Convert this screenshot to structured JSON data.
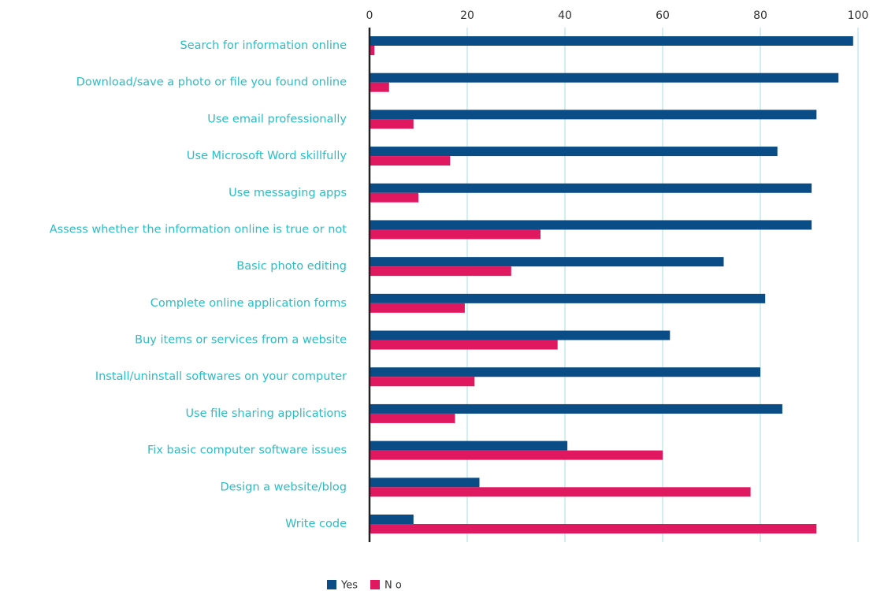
{
  "chart_data": {
    "type": "bar",
    "orientation": "horizontal",
    "categories": [
      "Search for information online",
      "Download/save a photo or file you found online",
      "Use email professionally",
      "Use Microsoft Word skillfully",
      "Use messaging apps",
      "Assess whether the information online is true or not",
      "Basic photo editing",
      "Complete online application forms",
      "Buy items or services from a website",
      "Install/uninstall softwares on your computer",
      "Use file sharing applications",
      "Fix basic computer software issues",
      "Design a website/blog",
      "Write code"
    ],
    "series": [
      {
        "name": "Yes",
        "color": "#0a4c86",
        "values": [
          99,
          96,
          91.5,
          83.5,
          90.5,
          90.5,
          72.5,
          81,
          61.5,
          80,
          84.5,
          40.5,
          22.5,
          9
        ]
      },
      {
        "name": "N o",
        "color": "#e0185f",
        "values": [
          1,
          4,
          9,
          16.5,
          10,
          35,
          29,
          19.5,
          38.5,
          21.5,
          17.5,
          60,
          78,
          91.5
        ]
      }
    ],
    "xlim": [
      0,
      100
    ],
    "xticks": [
      0,
      20,
      40,
      60,
      80,
      100
    ],
    "grid": true,
    "legend": "bottom"
  }
}
